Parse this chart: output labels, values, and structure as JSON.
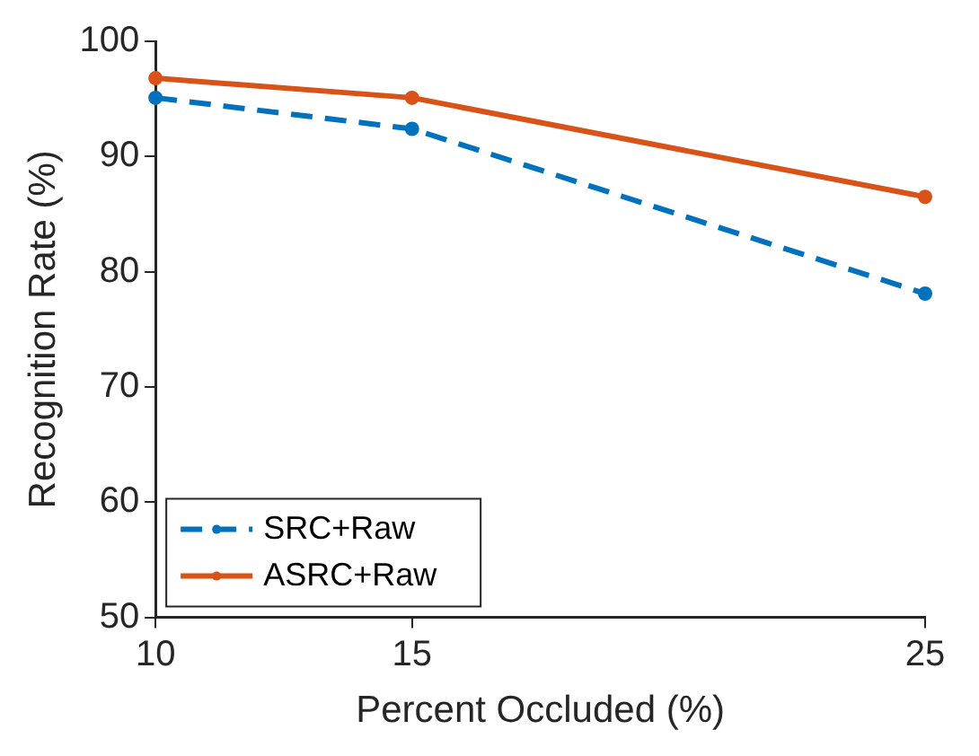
{
  "chart_data": {
    "type": "line",
    "xlabel": "Percent Occluded (%)",
    "ylabel": "Recognition Rate (%)",
    "x": [
      10,
      15,
      25
    ],
    "series": [
      {
        "name": "SRC+Raw",
        "color": "#0072bd",
        "values": [
          95.1,
          92.4,
          78.1
        ],
        "line_style": "dashed"
      },
      {
        "name": "ASRC+Raw",
        "color": "#d95319",
        "values": [
          96.8,
          95.1,
          86.5
        ],
        "line_style": "solid"
      }
    ],
    "xlim": [
      10,
      25
    ],
    "xticks": [
      10,
      15,
      25
    ],
    "ylim": [
      50,
      100
    ],
    "yticks": [
      50,
      60,
      70,
      80,
      90,
      100
    ],
    "grid": false,
    "legend": "bottom left",
    "marker": "circle"
  }
}
